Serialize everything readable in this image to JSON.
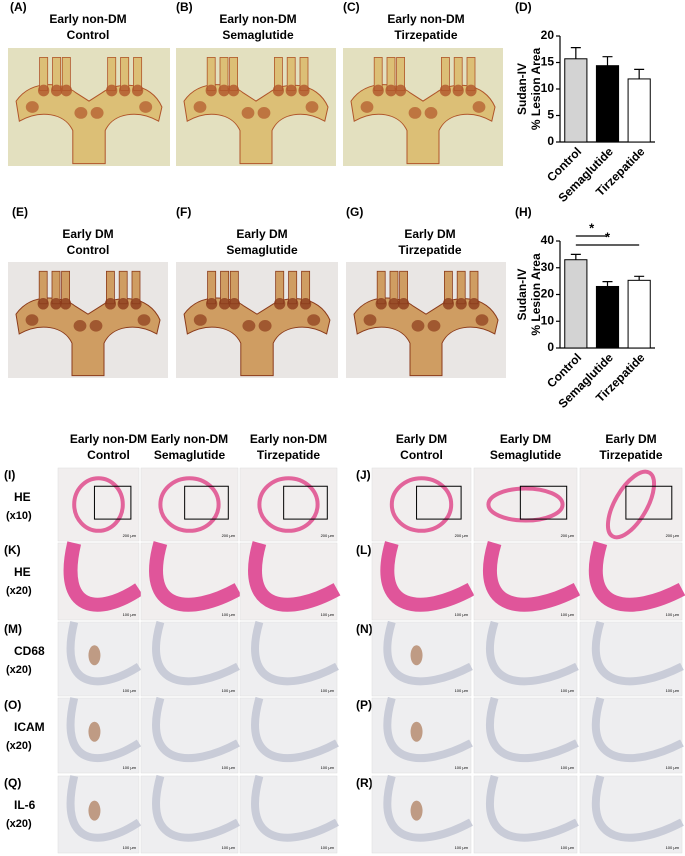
{
  "panels_top": [
    {
      "label": "(A)",
      "title": [
        "Early non-DM",
        "Control"
      ]
    },
    {
      "label": "(B)",
      "title": [
        "Early non-DM",
        "Semaglutide"
      ]
    },
    {
      "label": "(C)",
      "title": [
        "Early non-DM",
        "Tirzepatide"
      ]
    },
    {
      "label": "(E)",
      "title": [
        "Early DM",
        "Control"
      ]
    },
    {
      "label": "(F)",
      "title": [
        "Early DM",
        "Semaglutide"
      ]
    },
    {
      "label": "(G)",
      "title": [
        "Early DM",
        "Tirzepatide"
      ]
    }
  ],
  "chart_data": [
    {
      "type": "bar",
      "label": "(D)",
      "ylabel": [
        "Sudan-IV",
        "% Lesion Area"
      ],
      "categories": [
        "Control",
        "Semaglutide",
        "Tirzepatide"
      ],
      "values": [
        15.7,
        14.4,
        11.9
      ],
      "errors": [
        2.1,
        1.7,
        1.8
      ],
      "colors": [
        "#d3d3d3",
        "#000000",
        "#ffffff"
      ],
      "ylim": [
        0,
        20
      ],
      "yticks": [
        0,
        5,
        10,
        15,
        20
      ]
    },
    {
      "type": "bar",
      "label": "(H)",
      "ylabel": [
        "Sudan-IV",
        "% Lesion Area"
      ],
      "categories": [
        "Control",
        "Semaglutide",
        "Tirzepatide"
      ],
      "values": [
        33,
        23,
        25.3
      ],
      "errors": [
        2,
        1.8,
        1.5
      ],
      "colors": [
        "#d3d3d3",
        "#000000",
        "#ffffff"
      ],
      "ylim": [
        0,
        40
      ],
      "yticks": [
        0,
        10,
        20,
        30,
        40
      ],
      "significance": [
        {
          "from": "Control",
          "to": "Semaglutide",
          "label": "*"
        },
        {
          "from": "Control",
          "to": "Tirzepatide",
          "label": "*"
        }
      ]
    }
  ],
  "histology": {
    "columns": [
      {
        "title": [
          "Early non-DM",
          "Control"
        ]
      },
      {
        "title": [
          "Early non-DM",
          "Semaglutide"
        ]
      },
      {
        "title": [
          "Early non-DM",
          "Tirzepatide"
        ]
      },
      {
        "title": [
          "Early DM",
          "Control"
        ]
      },
      {
        "title": [
          "Early DM",
          "Semaglutide"
        ]
      },
      {
        "title": [
          "Early DM",
          "Tirzepatide"
        ]
      }
    ],
    "rows": [
      {
        "left_label": "(I)",
        "right_label": "(J)",
        "stain": "HE",
        "magnification": "(x10)",
        "scale": "200 μm"
      },
      {
        "left_label": "(K)",
        "right_label": "(L)",
        "stain": "HE",
        "magnification": "(x20)",
        "scale": "100 μm"
      },
      {
        "left_label": "(M)",
        "right_label": "(N)",
        "stain": "CD68",
        "magnification": "(x20)",
        "scale": "100 μm"
      },
      {
        "left_label": "(O)",
        "right_label": "(P)",
        "stain": "ICAM",
        "magnification": "(x20)",
        "scale": "100 μm"
      },
      {
        "left_label": "(Q)",
        "right_label": "(R)",
        "stain": "IL-6",
        "magnification": "(x20)",
        "scale": "100 μm"
      }
    ]
  }
}
